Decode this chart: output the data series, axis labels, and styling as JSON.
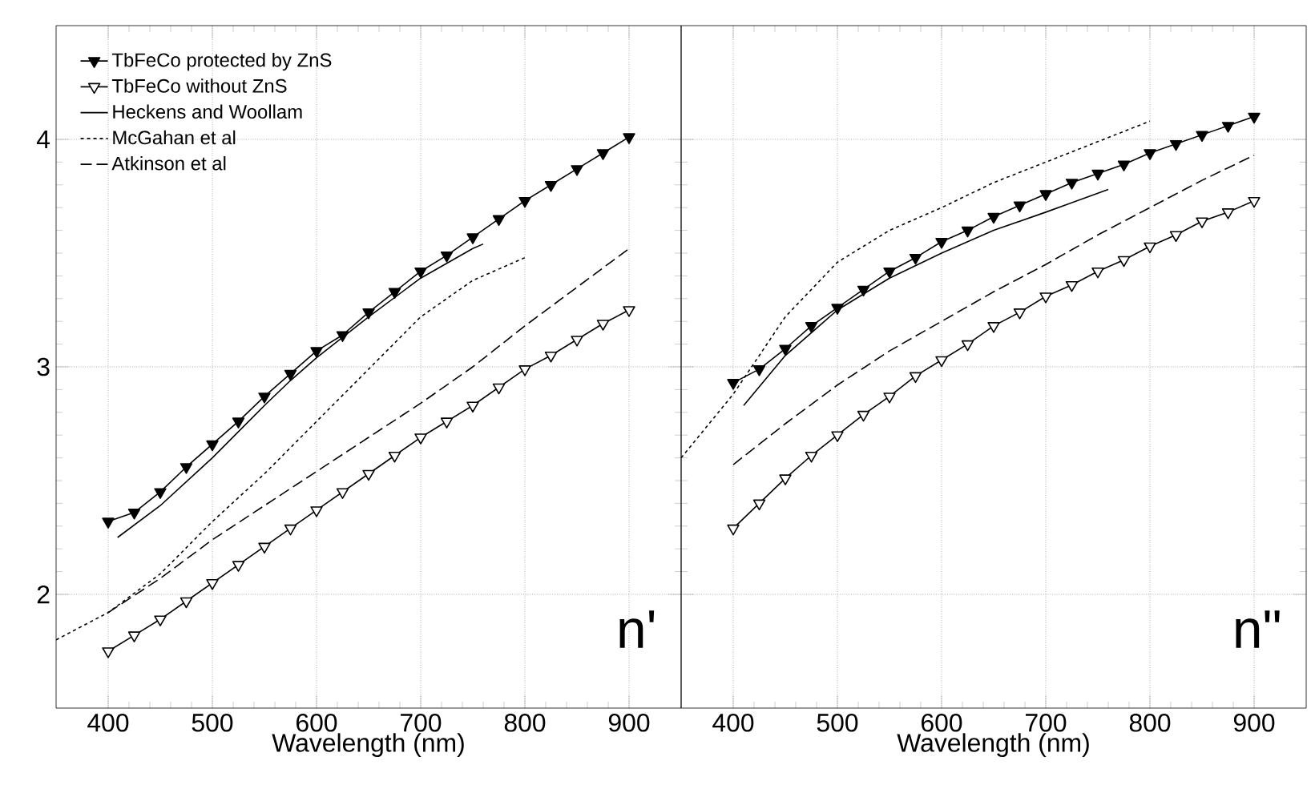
{
  "chart_data": [
    {
      "type": "line",
      "xlabel": "Wavelength (nm)",
      "xlim": [
        350,
        950
      ],
      "ylim": [
        1.5,
        4.5
      ],
      "xticks": [
        400,
        500,
        600,
        700,
        800,
        900
      ],
      "yticks": [
        2,
        3,
        4
      ],
      "grid": true,
      "legend": "top left",
      "annotations": [
        "n'"
      ],
      "series": [
        {
          "name": "TbFeCo protected by ZnS",
          "color": "#000000",
          "marker": "triangle",
          "line_style": "solid",
          "x": [
            400,
            425,
            450,
            475,
            500,
            525,
            550,
            575,
            600,
            625,
            650,
            675,
            700,
            725,
            750,
            775,
            800,
            825,
            850,
            875,
            900
          ],
          "values": [
            2.32,
            2.36,
            2.45,
            2.56,
            2.66,
            2.76,
            2.87,
            2.97,
            3.07,
            3.14,
            3.24,
            3.33,
            3.42,
            3.49,
            3.57,
            3.65,
            3.73,
            3.8,
            3.87,
            3.94,
            4.01
          ]
        },
        {
          "name": "TbFeCo without ZnS",
          "color": "#000000",
          "marker": "triangle",
          "line_style": "solid",
          "x": [
            400,
            425,
            450,
            475,
            500,
            525,
            550,
            575,
            600,
            625,
            650,
            675,
            700,
            725,
            750,
            775,
            800,
            825,
            850,
            875,
            900
          ],
          "values": [
            1.75,
            1.82,
            1.89,
            1.97,
            2.05,
            2.13,
            2.21,
            2.29,
            2.37,
            2.45,
            2.53,
            2.61,
            2.69,
            2.76,
            2.83,
            2.91,
            2.99,
            3.05,
            3.12,
            3.19,
            3.25
          ]
        },
        {
          "name": "Heckens and Woollam",
          "color": "#000000",
          "marker": "none",
          "line_style": "solid",
          "x": [
            409,
            450,
            500,
            550,
            575,
            600,
            650,
            700,
            750,
            760
          ],
          "values": [
            2.25,
            2.39,
            2.6,
            2.83,
            2.94,
            3.04,
            3.22,
            3.39,
            3.52,
            3.54
          ]
        },
        {
          "name": "McGahan et al",
          "color": "#000000",
          "marker": "none",
          "line_style": "dotted",
          "x": [
            350,
            400,
            450,
            500,
            550,
            600,
            650,
            700,
            750,
            800
          ],
          "values": [
            1.8,
            1.92,
            2.09,
            2.32,
            2.53,
            2.76,
            2.99,
            3.22,
            3.38,
            3.48
          ]
        },
        {
          "name": "Atkinson et al",
          "color": "#000000",
          "marker": "none",
          "line_style": "dashed",
          "x": [
            400,
            450,
            500,
            550,
            600,
            650,
            700,
            750,
            800,
            850,
            900
          ],
          "values": [
            1.92,
            2.07,
            2.24,
            2.39,
            2.54,
            2.69,
            2.84,
            3.0,
            3.18,
            3.35,
            3.52
          ]
        }
      ]
    },
    {
      "type": "line",
      "xlabel": "Wavelength (nm)",
      "xlim": [
        350,
        950
      ],
      "ylim": [
        1.5,
        4.5
      ],
      "xticks": [
        400,
        500,
        600,
        700,
        800,
        900
      ],
      "yticks": [
        2,
        3,
        4
      ],
      "grid": true,
      "tick_labels": "x",
      "annotations": [
        "n\""
      ],
      "series": [
        {
          "color": "#000000",
          "marker": "triangle",
          "line_style": "solid",
          "x": [
            400,
            425,
            450,
            475,
            500,
            525,
            550,
            575,
            600,
            625,
            650,
            675,
            700,
            725,
            750,
            775,
            800,
            825,
            850,
            875,
            900
          ],
          "values": [
            2.93,
            2.99,
            3.08,
            3.18,
            3.26,
            3.34,
            3.42,
            3.48,
            3.55,
            3.6,
            3.66,
            3.71,
            3.76,
            3.81,
            3.85,
            3.89,
            3.94,
            3.98,
            4.02,
            4.06,
            4.1
          ]
        },
        {
          "color": "#000000",
          "marker": "triangle",
          "line_style": "solid",
          "x": [
            400,
            425,
            450,
            475,
            500,
            525,
            550,
            575,
            600,
            625,
            650,
            675,
            700,
            725,
            750,
            775,
            800,
            825,
            850,
            875,
            900
          ],
          "values": [
            2.29,
            2.4,
            2.51,
            2.61,
            2.7,
            2.79,
            2.87,
            2.96,
            3.03,
            3.1,
            3.18,
            3.24,
            3.31,
            3.36,
            3.42,
            3.47,
            3.53,
            3.58,
            3.64,
            3.68,
            3.73
          ]
        },
        {
          "color": "#000000",
          "marker": "none",
          "line_style": "solid",
          "x": [
            410,
            450,
            500,
            550,
            600,
            650,
            700,
            760
          ],
          "values": [
            2.83,
            3.05,
            3.25,
            3.39,
            3.5,
            3.6,
            3.68,
            3.78
          ]
        },
        {
          "color": "#000000",
          "marker": "none",
          "line_style": "dotted",
          "x": [
            350,
            400,
            450,
            500,
            550,
            600,
            650,
            700,
            750,
            800
          ],
          "values": [
            2.6,
            2.88,
            3.22,
            3.46,
            3.6,
            3.7,
            3.81,
            3.9,
            3.99,
            4.08
          ]
        },
        {
          "color": "#000000",
          "marker": "none",
          "line_style": "dashed",
          "x": [
            400,
            450,
            500,
            550,
            600,
            650,
            700,
            750,
            800,
            850,
            900
          ],
          "values": [
            2.57,
            2.75,
            2.92,
            3.07,
            3.2,
            3.33,
            3.45,
            3.58,
            3.7,
            3.82,
            3.93
          ]
        }
      ]
    }
  ]
}
